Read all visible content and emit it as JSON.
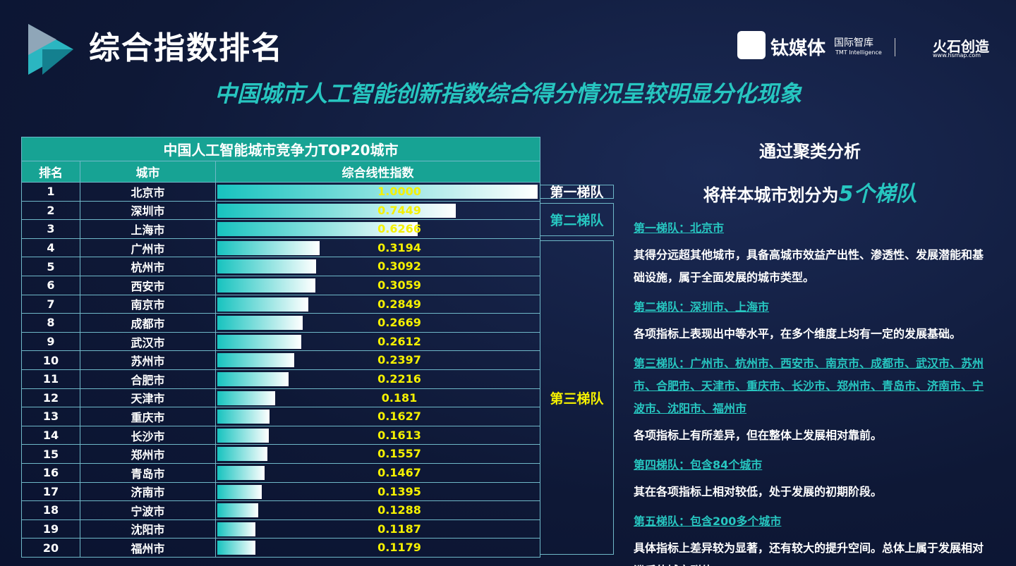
{
  "header": {
    "title": "综合指数排名",
    "subtitle": "中国城市人工智能创新指数综合得分情况呈较明显分化现象",
    "logo1": "钛媒体",
    "logo1_sub": "国际智库",
    "logo1_en": "TMT Intelligence",
    "logo2": "火石创造",
    "logo2_url": "www.hsmap.com"
  },
  "table": {
    "title": "中国人工智能城市竞争力TOP20城市",
    "columns": [
      "排名",
      "城市",
      "综合线性指数"
    ],
    "rows": [
      {
        "rank": 1,
        "city": "北京市",
        "index": {
          "value": 1,
          "label": "1.0000"
        }
      },
      {
        "rank": 2,
        "city": "深圳市",
        "index": 0.7449
      },
      {
        "rank": 3,
        "city": "上海市",
        "index": 0.6266
      },
      {
        "rank": 4,
        "city": "广州市",
        "index": 0.3194
      },
      {
        "rank": 5,
        "city": "杭州市",
        "index": 0.3092
      },
      {
        "rank": 6,
        "city": "西安市",
        "index": 0.3059
      },
      {
        "rank": 7,
        "city": "南京市",
        "index": 0.2849
      },
      {
        "rank": 8,
        "city": "成都市",
        "index": 0.2669
      },
      {
        "rank": 9,
        "city": "武汉市",
        "index": 0.2612
      },
      {
        "rank": 10,
        "city": "苏州市",
        "index": 0.2397
      },
      {
        "rank": 11,
        "city": "合肥市",
        "index": 0.2216
      },
      {
        "rank": 12,
        "city": "天津市",
        "index": 0.181
      },
      {
        "rank": 13,
        "city": "重庆市",
        "index": 0.1627
      },
      {
        "rank": 14,
        "city": "长沙市",
        "index": 0.1613
      },
      {
        "rank": 15,
        "city": "郑州市",
        "index": 0.1557
      },
      {
        "rank": 16,
        "city": "青岛市",
        "index": 0.1467
      },
      {
        "rank": 17,
        "city": "济南市",
        "index": 0.1395
      },
      {
        "rank": 18,
        "city": "宁波市",
        "index": 0.1288
      },
      {
        "rank": 19,
        "city": "沈阳市",
        "index": 0.1187
      },
      {
        "rank": 20,
        "city": "福州市",
        "index": 0.1179
      }
    ],
    "tiers": [
      "第一梯队",
      "第二梯队",
      "第三梯队"
    ]
  },
  "panel": {
    "line1": "通过聚类分析",
    "line2": "将样本城市划分为",
    "line2_highlight": "5个梯队",
    "sections": [
      {
        "heading": "第一梯队：北京市",
        "text": "其得分远超其他城市，具备高城市效益产出性、渗透性、发展潜能和基础设施，属于全面发展的城市类型。"
      },
      {
        "heading": "第二梯队：深圳市、上海市",
        "text": "各项指标上表现出中等水平，在多个维度上均有一定的发展基础。"
      },
      {
        "heading": "第三梯队：广州市、杭州市、西安市、南京市、成都市、武汉市、苏州市、合肥市、天津市、重庆市、长沙市、郑州市、青岛市、济南市、宁波市、沈阳市、福州市",
        "text": "各项指标上有所差异，但在整体上发展相对靠前。"
      },
      {
        "heading": "第四梯队：包含84个城市",
        "text": "其在各项指标上相对较低，处于发展的初期阶段。"
      },
      {
        "heading": "第五梯队：包含200多个城市",
        "text": "具体指标上差异较为显著，还有较大的提升空间。总体上属于发展相对滞后的城市群体。"
      }
    ]
  }
}
